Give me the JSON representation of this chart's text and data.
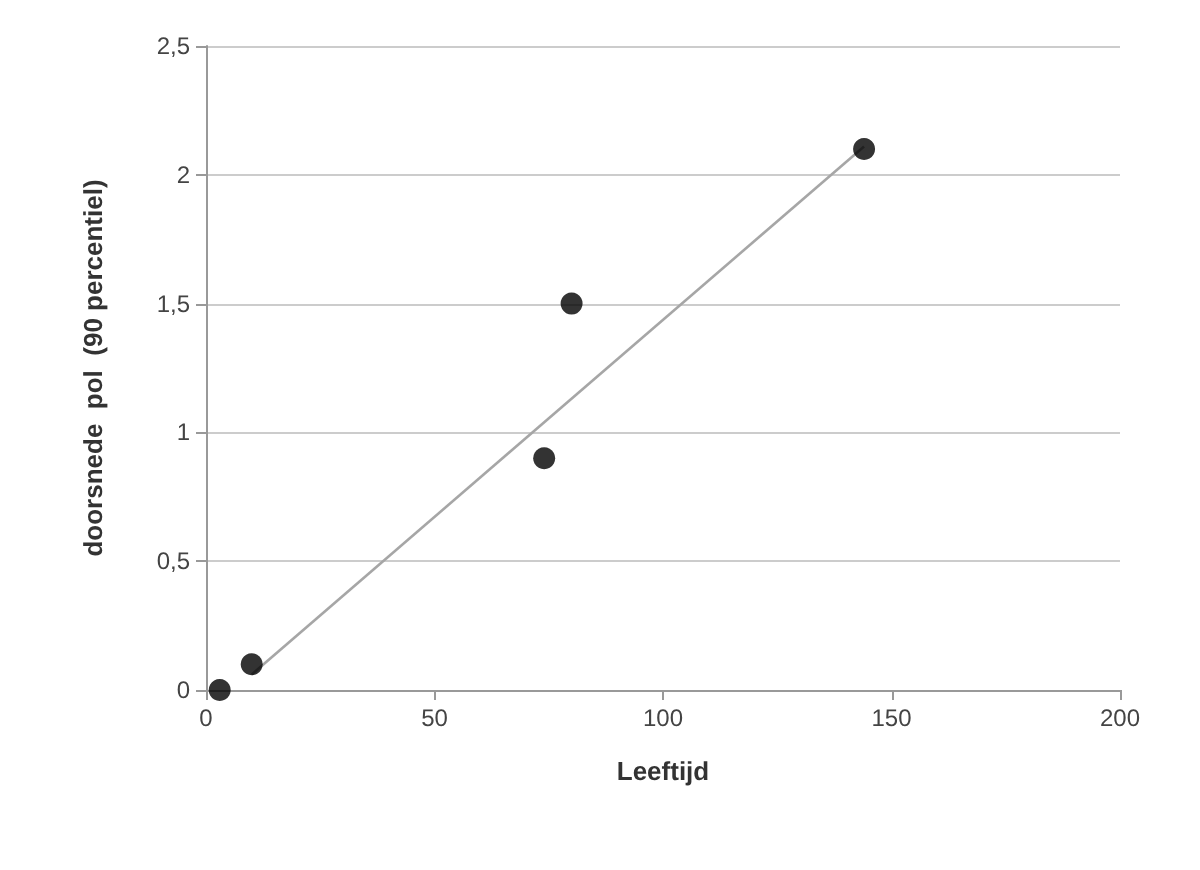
{
  "chart_data": {
    "type": "scatter",
    "xlabel": "Leeftijd",
    "ylabel": "doorsnede  pol  (90 percentiel)",
    "xlim": [
      0,
      200
    ],
    "xticks": [
      0,
      50,
      100,
      150,
      200
    ],
    "ylim": [
      0,
      2.5
    ],
    "yticks": [
      0,
      {
        "value": 0.5,
        "label": "0,5"
      },
      1,
      {
        "value": 1.5,
        "label": "1,5"
      },
      2,
      {
        "value": 2.5,
        "label": "2,5"
      }
    ],
    "grid": "y",
    "marker": "circle",
    "series": [
      {
        "color": "#000000",
        "x": [
          3,
          10,
          74,
          80,
          144
        ],
        "values": [
          0,
          0.1,
          0.9,
          1.5,
          2.1
        ]
      },
      {
        "type": "line",
        "color": "#a6a6a6",
        "marker": "none",
        "line_style": "solid",
        "x": [
          10,
          144
        ],
        "values": [
          0.06,
          2.11
        ]
      }
    ]
  }
}
